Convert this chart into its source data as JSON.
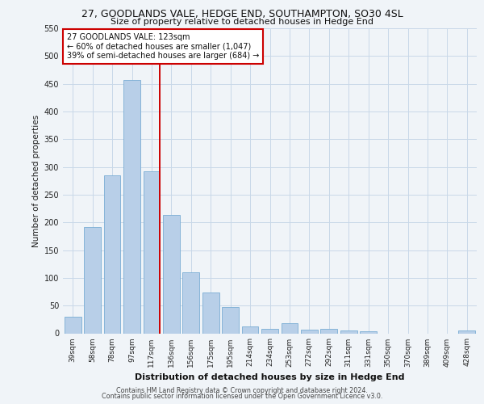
{
  "title": "27, GOODLANDS VALE, HEDGE END, SOUTHAMPTON, SO30 4SL",
  "subtitle": "Size of property relative to detached houses in Hedge End",
  "xlabel": "Distribution of detached houses by size in Hedge End",
  "ylabel": "Number of detached properties",
  "categories": [
    "39sqm",
    "58sqm",
    "78sqm",
    "97sqm",
    "117sqm",
    "136sqm",
    "156sqm",
    "175sqm",
    "195sqm",
    "214sqm",
    "234sqm",
    "253sqm",
    "272sqm",
    "292sqm",
    "311sqm",
    "331sqm",
    "350sqm",
    "370sqm",
    "389sqm",
    "409sqm",
    "428sqm"
  ],
  "values": [
    30,
    192,
    285,
    457,
    292,
    213,
    110,
    73,
    47,
    12,
    8,
    18,
    7,
    8,
    5,
    4,
    0,
    0,
    0,
    0,
    5
  ],
  "bar_color": "#b8cfe8",
  "bar_edge_color": "#7aadd4",
  "marker_bar_index": 4,
  "marker_line_color": "#cc0000",
  "annotation_text": "27 GOODLANDS VALE: 123sqm\n← 60% of detached houses are smaller (1,047)\n39% of semi-detached houses are larger (684) →",
  "annotation_box_color": "#ffffff",
  "annotation_box_edge": "#cc0000",
  "ylim": [
    0,
    550
  ],
  "yticks": [
    0,
    50,
    100,
    150,
    200,
    250,
    300,
    350,
    400,
    450,
    500,
    550
  ],
  "background_color": "#f0f4f8",
  "grid_color": "#c8d8e8",
  "footer_line1": "Contains HM Land Registry data © Crown copyright and database right 2024.",
  "footer_line2": "Contains public sector information licensed under the Open Government Licence v3.0."
}
